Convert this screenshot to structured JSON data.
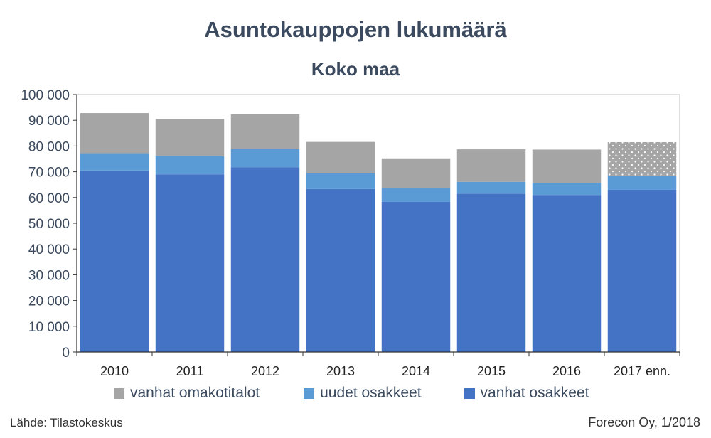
{
  "chart_data": {
    "type": "bar",
    "stacked": true,
    "title": "Asuntokauppojen lukumäärä",
    "subtitle": "Koko maa",
    "categories": [
      "2010",
      "2011",
      "2012",
      "2013",
      "2014",
      "2015",
      "2016",
      "2017 enn."
    ],
    "series": [
      {
        "name": "vanhat osakkeet",
        "color": "#4472c4",
        "values": [
          70500,
          69000,
          71700,
          63300,
          58300,
          61500,
          61000,
          63000
        ]
      },
      {
        "name": "uudet osakkeet",
        "color": "#5b9bd5",
        "values": [
          6700,
          7000,
          7100,
          6300,
          5500,
          4600,
          4700,
          5500
        ]
      },
      {
        "name": "vanhat omakotitalot",
        "color": "#a5a5a5",
        "values": [
          15600,
          14500,
          13500,
          12000,
          11400,
          12600,
          12900,
          13000
        ]
      }
    ],
    "forecast_category": "2017 enn.",
    "ylim": [
      0,
      100000
    ],
    "yticks": [
      0,
      10000,
      20000,
      30000,
      40000,
      50000,
      60000,
      70000,
      80000,
      90000,
      100000
    ],
    "ytick_labels": [
      "0",
      "10 000",
      "20 000",
      "30 000",
      "40 000",
      "50 000",
      "60 000",
      "70 000",
      "80 000",
      "90 000",
      "100 000"
    ],
    "xlabel": "",
    "ylabel": "",
    "grid": false,
    "legend_position": "bottom"
  },
  "legend": {
    "items": [
      {
        "label": "vanhat omakotitalot",
        "color": "#a5a5a5"
      },
      {
        "label": "uudet osakkeet",
        "color": "#5b9bd5"
      },
      {
        "label": "vanhat osakkeet",
        "color": "#4472c4"
      }
    ]
  },
  "footer": {
    "source": "Lähde: Tilastokeskus",
    "credit": "Forecon Oy, 1/2018"
  }
}
